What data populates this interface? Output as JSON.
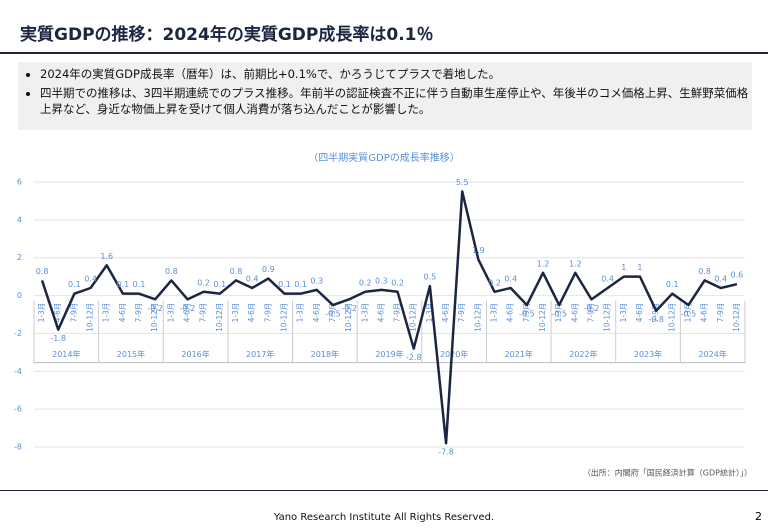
{
  "header": {
    "title": "実質GDPの推移：2024年の実質GDP成長率は0.1％"
  },
  "bullets": [
    "2024年の実質GDP成長率（暦年）は、前期比+0.1%で、かろうじてプラスで着地した。",
    "四半期での推移は、3四半期連続でのプラス推移。年前半の認証検査不正に伴う自動車生産停止や、年後半のコメ価格上昇、生鮮野菜価格上昇など、身近な物価上昇を受けて個人消費が落ち込んだことが影響した。"
  ],
  "chart_data": {
    "type": "line",
    "title": "（四半期実質GDPの成長率推移）",
    "categories": [
      "1-3月",
      "4-6月",
      "7-9月",
      "10-12月",
      "1-3月",
      "4-6月",
      "7-9月",
      "10-12月",
      "1-3月",
      "4-6月",
      "7-9月",
      "10-12月",
      "1-3月",
      "4-6月",
      "7-9月",
      "10-12月",
      "1-3月",
      "4-6月",
      "7-9月",
      "10-12月",
      "1-3月",
      "4-6月",
      "7-9月",
      "10-12月",
      "1-3月",
      "4-6月",
      "7-9月",
      "10-12月",
      "1-3月",
      "4-6月",
      "7-9月",
      "10-12月",
      "1-3月",
      "4-6月",
      "7-9月",
      "10-12月",
      "1-3月",
      "4-6月",
      "7-9月",
      "10-12月",
      "1-3月",
      "4-6月",
      "7-9月",
      "10-12月"
    ],
    "groups": [
      "2014年",
      "2015年",
      "2016年",
      "2017年",
      "2018年",
      "2019年",
      "2020年",
      "2021年",
      "2022年",
      "2023年",
      "2024年"
    ],
    "series": [
      {
        "name": "実質GDP成長率",
        "color": "#1c2640",
        "values": [
          0.8,
          -1.8,
          0.1,
          0.4,
          1.6,
          0.1,
          0.1,
          -0.2,
          0.8,
          -0.2,
          0.2,
          0.1,
          0.8,
          0.4,
          0.9,
          0.1,
          0.1,
          0.3,
          -0.5,
          -0.2,
          0.2,
          0.3,
          0.2,
          -2.8,
          0.5,
          -7.8,
          5.5,
          1.9,
          0.2,
          0.4,
          -0.5,
          1.2,
          -0.5,
          1.2,
          -0.2,
          0.4,
          1,
          1,
          -0.8,
          0.1,
          -0.5,
          0.8,
          0.4,
          0.6
        ]
      }
    ],
    "ylim": [
      -8,
      6
    ],
    "yticks": [
      -8,
      -6,
      -4,
      -2,
      0,
      2,
      4,
      6
    ],
    "grid": true,
    "source": "（出所：内閣府「国民経済計算（GDP統計）」）"
  },
  "footer": {
    "text": "Yano Research Institute All Rights Reserved.",
    "page": "2"
  }
}
